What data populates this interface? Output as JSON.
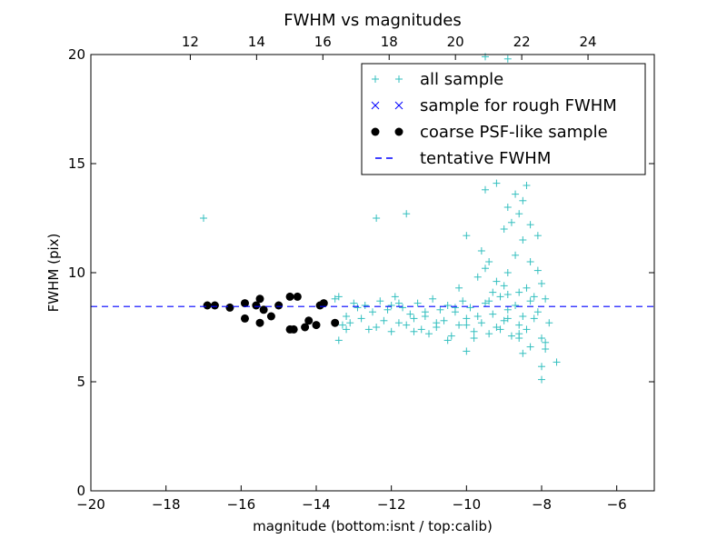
{
  "chart_data": {
    "type": "scatter",
    "title": "FWHM vs magnitudes",
    "xlabel": "magnitude (bottom:isnt / top:calib)",
    "ylabel": "FWHM (pix)",
    "xlim": [
      -20,
      -5
    ],
    "ylim": [
      0,
      20
    ],
    "top_xlim": [
      9,
      26
    ],
    "x_ticks": [
      -20,
      -18,
      -16,
      -14,
      -12,
      -10,
      -8,
      -6
    ],
    "x_tick_labels": [
      "−20",
      "−18",
      "−16",
      "−14",
      "−12",
      "−10",
      "−8",
      "−6"
    ],
    "y_ticks": [
      0,
      5,
      10,
      15,
      20
    ],
    "y_tick_labels": [
      "0",
      "5",
      "10",
      "15",
      "20"
    ],
    "top_ticks": [
      12,
      14,
      16,
      18,
      20,
      22,
      24
    ],
    "top_tick_labels": [
      "12",
      "14",
      "16",
      "18",
      "20",
      "22",
      "24"
    ],
    "grid": false,
    "legend_position": "top-right",
    "colors": {
      "all_sample": "#33bfbf",
      "rough": "#0000ff",
      "coarse": "#000000",
      "tentative": "#0000ff"
    },
    "legend": [
      {
        "label": "all sample",
        "marker": "plus",
        "color": "#33bfbf"
      },
      {
        "label": "sample for rough FWHM",
        "marker": "x",
        "color": "#0000ff"
      },
      {
        "label": "coarse PSF-like sample",
        "marker": "dot",
        "color": "#000000"
      },
      {
        "label": "tentative FWHM",
        "marker": "dash",
        "color": "#0000ff"
      }
    ],
    "series": [
      {
        "name": "all sample",
        "marker": "plus",
        "points": [
          [
            -17.0,
            12.5
          ],
          [
            -12.4,
            12.5
          ],
          [
            -11.6,
            12.7
          ],
          [
            -9.5,
            19.9
          ],
          [
            -8.9,
            19.8
          ],
          [
            -13.5,
            8.8
          ],
          [
            -13.4,
            8.9
          ],
          [
            -13.3,
            7.6
          ],
          [
            -13.2,
            8.0
          ],
          [
            -13.1,
            7.7
          ],
          [
            -13.0,
            8.6
          ],
          [
            -12.9,
            8.4
          ],
          [
            -12.8,
            7.9
          ],
          [
            -12.7,
            8.5
          ],
          [
            -12.6,
            7.4
          ],
          [
            -12.5,
            8.2
          ],
          [
            -12.4,
            7.5
          ],
          [
            -12.3,
            8.7
          ],
          [
            -12.2,
            7.8
          ],
          [
            -12.1,
            8.3
          ],
          [
            -12.0,
            7.3
          ],
          [
            -11.9,
            8.9
          ],
          [
            -11.8,
            7.7
          ],
          [
            -11.7,
            8.4
          ],
          [
            -11.6,
            7.6
          ],
          [
            -11.5,
            8.1
          ],
          [
            -11.4,
            7.9
          ],
          [
            -11.3,
            8.6
          ],
          [
            -11.2,
            7.4
          ],
          [
            -11.1,
            8.0
          ],
          [
            -11.0,
            7.2
          ],
          [
            -10.9,
            8.8
          ],
          [
            -10.8,
            7.5
          ],
          [
            -10.7,
            8.3
          ],
          [
            -10.6,
            7.8
          ],
          [
            -10.5,
            8.5
          ],
          [
            -10.4,
            7.1
          ],
          [
            -10.3,
            8.2
          ],
          [
            -10.2,
            7.6
          ],
          [
            -10.1,
            8.7
          ],
          [
            -10.0,
            7.9
          ],
          [
            -9.9,
            8.4
          ],
          [
            -9.8,
            7.3
          ],
          [
            -9.7,
            8.0
          ],
          [
            -9.6,
            7.7
          ],
          [
            -9.5,
            8.6
          ],
          [
            -9.4,
            7.2
          ],
          [
            -9.3,
            8.1
          ],
          [
            -9.2,
            7.5
          ],
          [
            -9.1,
            8.9
          ],
          [
            -9.0,
            7.8
          ],
          [
            -8.9,
            8.3
          ],
          [
            -8.8,
            7.1
          ],
          [
            -8.7,
            8.5
          ],
          [
            -8.6,
            7.6
          ],
          [
            -8.5,
            8.0
          ],
          [
            -8.4,
            7.4
          ],
          [
            -8.3,
            8.7
          ],
          [
            -8.2,
            7.9
          ],
          [
            -8.1,
            8.2
          ],
          [
            -8.0,
            7.0
          ],
          [
            -7.9,
            8.8
          ],
          [
            -7.8,
            7.7
          ],
          [
            -13.4,
            6.9
          ],
          [
            -13.2,
            7.4
          ],
          [
            -12.0,
            8.5
          ],
          [
            -11.8,
            8.6
          ],
          [
            -11.4,
            7.3
          ],
          [
            -11.1,
            8.2
          ],
          [
            -10.8,
            7.7
          ],
          [
            -10.5,
            6.9
          ],
          [
            -10.3,
            8.4
          ],
          [
            -10.0,
            7.6
          ],
          [
            -10.0,
            6.4
          ],
          [
            -9.8,
            7.0
          ],
          [
            -9.4,
            8.7
          ],
          [
            -9.1,
            7.4
          ],
          [
            -8.9,
            7.9
          ],
          [
            -8.6,
            7.2
          ],
          [
            -10.0,
            11.7
          ],
          [
            -9.6,
            11.0
          ],
          [
            -9.4,
            10.5
          ],
          [
            -9.0,
            12.0
          ],
          [
            -8.8,
            12.3
          ],
          [
            -8.5,
            11.5
          ],
          [
            -8.3,
            12.2
          ],
          [
            -8.1,
            11.7
          ],
          [
            -8.9,
            13.0
          ],
          [
            -8.5,
            13.3
          ],
          [
            -8.7,
            13.6
          ],
          [
            -8.4,
            14.0
          ],
          [
            -9.2,
            14.1
          ],
          [
            -9.5,
            13.8
          ],
          [
            -8.6,
            12.7
          ],
          [
            -8.3,
            10.5
          ],
          [
            -9.2,
            9.6
          ],
          [
            -8.9,
            9.0
          ],
          [
            -8.4,
            9.3
          ],
          [
            -8.1,
            10.1
          ],
          [
            -8.0,
            9.5
          ],
          [
            -10.2,
            9.3
          ],
          [
            -9.7,
            9.8
          ],
          [
            -9.0,
            9.4
          ],
          [
            -8.6,
            9.1
          ],
          [
            -8.2,
            8.9
          ],
          [
            -7.6,
            5.9
          ],
          [
            -7.9,
            6.5
          ],
          [
            -7.9,
            6.8
          ],
          [
            -8.0,
            5.7
          ],
          [
            -8.0,
            5.1
          ],
          [
            -8.5,
            6.3
          ],
          [
            -8.3,
            6.6
          ],
          [
            -8.6,
            7.0
          ],
          [
            -8.9,
            10.0
          ],
          [
            -8.7,
            10.8
          ],
          [
            -9.5,
            10.2
          ],
          [
            -9.3,
            9.1
          ]
        ]
      },
      {
        "name": "sample for rough FWHM",
        "marker": "x",
        "points": []
      },
      {
        "name": "coarse PSF-like sample",
        "marker": "dot",
        "points": [
          [
            -16.9,
            8.5
          ],
          [
            -16.7,
            8.5
          ],
          [
            -16.3,
            8.4
          ],
          [
            -15.9,
            8.6
          ],
          [
            -15.9,
            7.9
          ],
          [
            -15.6,
            8.5
          ],
          [
            -15.5,
            8.8
          ],
          [
            -15.5,
            7.7
          ],
          [
            -15.4,
            8.3
          ],
          [
            -15.2,
            8.0
          ],
          [
            -15.0,
            8.5
          ],
          [
            -14.7,
            8.9
          ],
          [
            -14.5,
            8.9
          ],
          [
            -14.6,
            7.4
          ],
          [
            -14.7,
            7.4
          ],
          [
            -14.3,
            7.5
          ],
          [
            -14.2,
            7.8
          ],
          [
            -14.0,
            7.6
          ],
          [
            -13.9,
            8.5
          ],
          [
            -13.8,
            8.6
          ],
          [
            -13.5,
            7.7
          ]
        ]
      },
      {
        "name": "tentative FWHM",
        "marker": "hline",
        "value": 8.45
      }
    ]
  }
}
